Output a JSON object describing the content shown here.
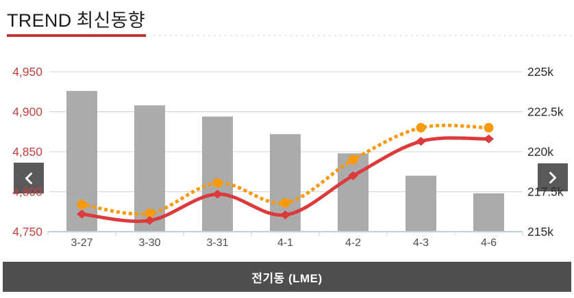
{
  "header": {
    "title_en": "TREND",
    "title_ko": "최신동향"
  },
  "footer": {
    "label": "전기동 (LME)"
  },
  "colors": {
    "accent_red": "#c13434",
    "grid": "#d4d4d4",
    "axis": "#c6ced6",
    "xlabel": "#4c4c4c",
    "bar_gray": "#ababab",
    "line_red": "#dc3a3c",
    "line_orange": "#f79a0e",
    "nav_button_bg": "#59595b",
    "footer_bg": "#4d4e50"
  },
  "chart_data": {
    "type": "combo",
    "title": "TREND 최신동향",
    "categories": [
      "3-27",
      "3-30",
      "3-31",
      "4-1",
      "4-2",
      "4-3",
      "4-6"
    ],
    "left_axis": {
      "min": 4750,
      "max": 4950,
      "labels": [
        "4,950",
        "4,900",
        "4,850",
        "4,800",
        "4,750"
      ],
      "color": "#c0413f"
    },
    "right_axis": {
      "min": 215,
      "max": 225,
      "labels": [
        "225k",
        "222.5k",
        "220k",
        "217.5k",
        "215k"
      ],
      "color": "#2b2b2b"
    },
    "grid": true,
    "legend": "none",
    "series": [
      {
        "name": "inventory-bars",
        "type": "bar",
        "axis": "right",
        "color": "#ababab",
        "values": [
          223.8,
          222.9,
          222.2,
          221.1,
          219.9,
          218.5,
          217.4
        ]
      },
      {
        "name": "dotted-orange-line",
        "type": "line",
        "style": "dotted",
        "marker": "circle",
        "axis": "left",
        "color": "#f79a0e",
        "values": [
          4784,
          4773,
          4811,
          4786,
          4840,
          4880,
          4880
        ]
      },
      {
        "name": "solid-red-line",
        "type": "line",
        "style": "solid",
        "marker": "diamond",
        "axis": "left",
        "color": "#dc3a3c",
        "values": [
          4772,
          4764,
          4797,
          4771,
          4820,
          4863,
          4866
        ]
      }
    ]
  }
}
